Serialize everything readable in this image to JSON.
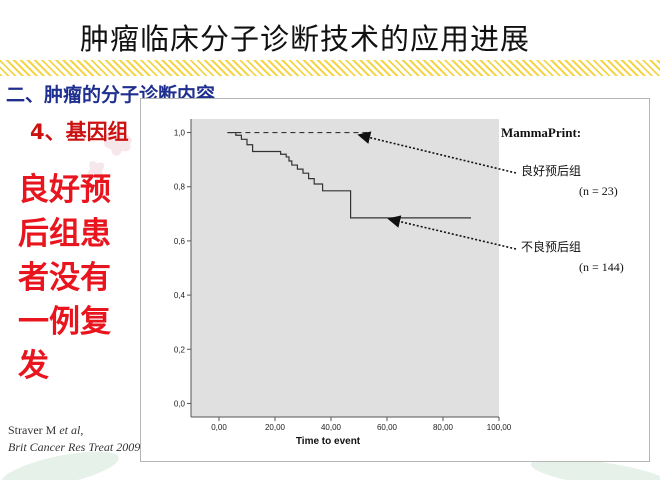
{
  "slide": {
    "title": "肿瘤临床分子诊断技术的应用进展",
    "section": "二、肿瘤的分子诊断内容",
    "subsection": "4、基因组",
    "callout": "良好预后组患者没有一例复发",
    "citation": {
      "authors": "Straver M",
      "et_al": "et al,",
      "journal": "Brit Cancer Res Treat 2009"
    }
  },
  "colors": {
    "accent_red": "#e8141e",
    "section_blue": "#1f2f8f",
    "plot_bg": "#e0e0e0"
  },
  "chart_data": {
    "type": "line",
    "title": "MammaPrint:",
    "xlabel": "Time to event",
    "ylabel": "",
    "xlim": [
      -10,
      100
    ],
    "ylim": [
      -0.05,
      1.05
    ],
    "xticks": [
      0,
      20,
      40,
      60,
      80,
      100
    ],
    "xtick_labels": [
      "0,00",
      "20,00",
      "40,00",
      "60,00",
      "80,00",
      "100,00"
    ],
    "yticks": [
      0.0,
      0.2,
      0.4,
      0.6,
      0.8,
      1.0
    ],
    "ytick_labels": [
      "0,0",
      "0,2",
      "0,4",
      "0,6",
      "0,8",
      "1,0"
    ],
    "grid": false,
    "series": [
      {
        "name": "良好预后组",
        "n_label": "(n = 23)",
        "style": "dashed",
        "x": [
          3,
          53
        ],
        "y": [
          1.0,
          1.0
        ]
      },
      {
        "name": "不良预后组",
        "n_label": "(n = 144)",
        "style": "step",
        "x": [
          3,
          6,
          8,
          10,
          12,
          22,
          24,
          25,
          26,
          28,
          30,
          32,
          34,
          37,
          47,
          90
        ],
        "y": [
          1.0,
          0.99,
          0.975,
          0.955,
          0.93,
          0.92,
          0.91,
          0.895,
          0.88,
          0.865,
          0.85,
          0.83,
          0.81,
          0.785,
          0.685,
          0.685
        ]
      }
    ]
  }
}
